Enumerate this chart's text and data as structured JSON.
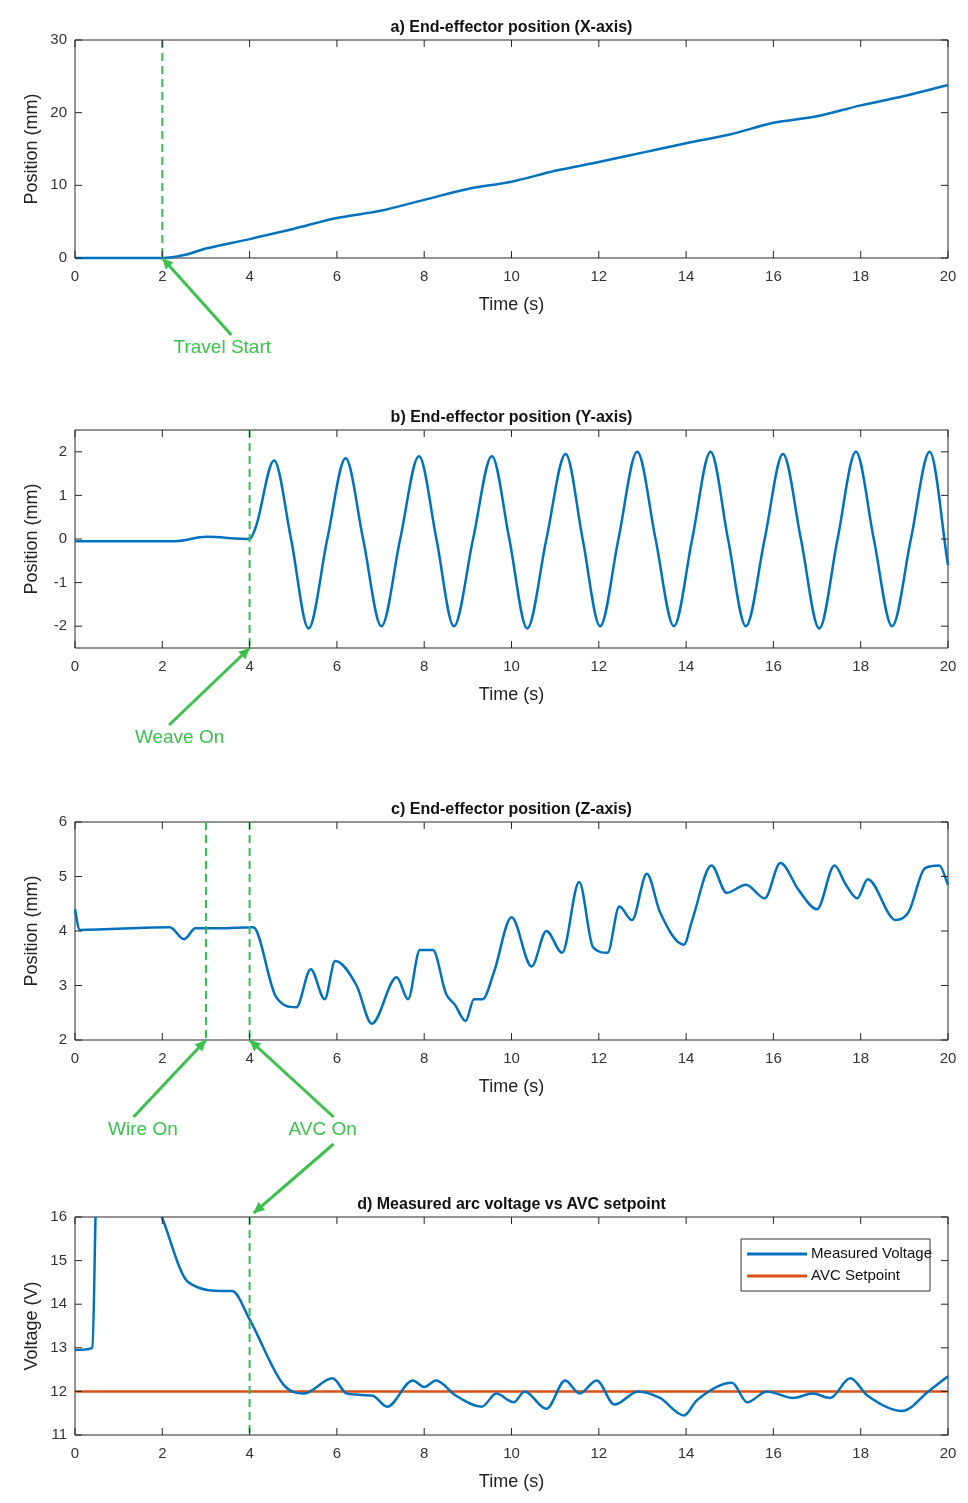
{
  "chart_data": [
    {
      "type": "line",
      "title": "a) End-effector position (X-axis)",
      "xlabel": "Time (s)",
      "ylabel": "Position (mm)",
      "xlim": [
        0,
        20
      ],
      "xticks": [
        0,
        2,
        4,
        6,
        8,
        10,
        12,
        14,
        16,
        18,
        20
      ],
      "ylim": [
        0,
        30
      ],
      "yticks": [
        0,
        10,
        20,
        30
      ],
      "grid": false,
      "legend": false,
      "series": [
        {
          "color": "#0072bd",
          "x": [
            0,
            1,
            2,
            2.5,
            3,
            4,
            5,
            6,
            7,
            8,
            9,
            10,
            11,
            12,
            13,
            14,
            15,
            16,
            17,
            18,
            19,
            20
          ],
          "values": [
            0,
            0,
            0,
            0.4,
            1.3,
            2.6,
            4,
            5.5,
            6.5,
            8,
            9.5,
            10.5,
            12,
            13.2,
            14.5,
            15.8,
            17,
            18.6,
            19.5,
            21,
            22.3,
            23.8
          ]
        }
      ],
      "ref_lines": [
        {
          "axis": "x",
          "value": 2,
          "color": "#33bb55",
          "line_style": "dashed"
        }
      ],
      "annotations": [
        {
          "text": "Travel Start",
          "x": 2,
          "y": 0
        }
      ]
    },
    {
      "type": "line",
      "title": "b) End-effector position (Y-axis)",
      "xlabel": "Time (s)",
      "ylabel": "Position (mm)",
      "xlim": [
        0,
        20
      ],
      "xticks": [
        0,
        2,
        4,
        6,
        8,
        10,
        12,
        14,
        16,
        18,
        20
      ],
      "ylim": [
        -2.5,
        2.5
      ],
      "yticks": [
        -2,
        -1,
        0,
        1,
        2
      ],
      "grid": false,
      "legend": false,
      "series": [
        {
          "color": "#0072bd",
          "x": [
            0,
            2.3,
            3,
            4,
            4.15,
            4.56,
            4.95,
            5.35,
            5.78,
            6.2,
            6.6,
            7.02,
            7.45,
            7.88,
            8.28,
            8.68,
            9.12,
            9.55,
            9.95,
            10.36,
            10.8,
            11.24,
            11.63,
            12.03,
            12.45,
            12.88,
            13.3,
            13.72,
            14.14,
            14.56,
            14.96,
            15.37,
            15.8,
            16.22,
            16.63,
            17.05,
            17.47,
            17.89,
            18.3,
            18.72,
            19.15,
            19.58,
            20
          ],
          "values": [
            -0.05,
            -0.05,
            0.05,
            0,
            0.3,
            1.8,
            0,
            -2.05,
            0,
            1.85,
            0,
            -2,
            0,
            1.9,
            0,
            -2,
            0,
            1.9,
            0,
            -2.05,
            0,
            1.95,
            0,
            -2,
            0,
            2,
            0,
            -2,
            0,
            2,
            0,
            -2,
            0,
            1.95,
            0,
            -2.05,
            0,
            2,
            0,
            -2,
            0,
            2,
            -0.6
          ]
        }
      ],
      "ref_lines": [
        {
          "axis": "x",
          "value": 4,
          "color": "#33bb55",
          "line_style": "dashed"
        }
      ],
      "annotations": [
        {
          "text": "Weave On",
          "x": 4,
          "y": -2.5
        }
      ]
    },
    {
      "type": "line",
      "title": "c) End-effector position (Z-axis)",
      "xlabel": "Time (s)",
      "ylabel": "Position (mm)",
      "xlim": [
        0,
        20
      ],
      "xticks": [
        0,
        2,
        4,
        6,
        8,
        10,
        12,
        14,
        16,
        18,
        20
      ],
      "ylim": [
        2,
        6
      ],
      "yticks": [
        2,
        3,
        4,
        5,
        6
      ],
      "grid": false,
      "legend": false,
      "series": [
        {
          "color": "#0072bd",
          "x": [
            0,
            0.1,
            2.17,
            2.5,
            2.76,
            3.3,
            4.08,
            4.6,
            5.07,
            5.4,
            5.72,
            5.96,
            6.45,
            6.8,
            7.37,
            7.63,
            7.9,
            8.2,
            8.5,
            8.7,
            8.95,
            9.14,
            9.34,
            9.6,
            10,
            10.46,
            10.8,
            11.16,
            11.55,
            11.87,
            12.2,
            12.47,
            12.76,
            13.1,
            13.4,
            13.95,
            14.14,
            14.58,
            14.93,
            15.37,
            15.8,
            16.16,
            16.58,
            17,
            17.4,
            17.66,
            17.92,
            18.16,
            18.8,
            19.1,
            19.47,
            19.8,
            20
          ],
          "values": [
            4.4,
            4.02,
            4.07,
            3.85,
            4.05,
            4.05,
            4.07,
            2.8,
            2.6,
            3.3,
            2.75,
            3.45,
            3,
            2.3,
            3.15,
            2.75,
            3.65,
            3.65,
            2.85,
            2.65,
            2.35,
            2.75,
            2.75,
            3.25,
            4.25,
            3.35,
            4,
            3.6,
            4.9,
            3.7,
            3.6,
            4.45,
            4.2,
            5.05,
            4.35,
            3.75,
            4.2,
            5.2,
            4.7,
            4.85,
            4.6,
            5.25,
            4.75,
            4.4,
            5.2,
            4.85,
            4.6,
            4.95,
            4.2,
            4.35,
            5.15,
            5.2,
            4.85
          ]
        }
      ],
      "ref_lines": [
        {
          "axis": "x",
          "value": 3,
          "color": "#33bb55",
          "line_style": "dashed"
        },
        {
          "axis": "x",
          "value": 4,
          "color": "#33bb55",
          "line_style": "dashed"
        }
      ],
      "annotations": [
        {
          "text": "Wire On",
          "x": 3,
          "y": 2
        },
        {
          "text": "AVC On",
          "x": 4,
          "y": 2
        }
      ]
    },
    {
      "type": "line",
      "title": "d) Measured arc voltage vs AVC setpoint",
      "xlabel": "Time (s)",
      "ylabel": "Voltage (V)",
      "xlim": [
        0,
        20
      ],
      "xticks": [
        0,
        2,
        4,
        6,
        8,
        10,
        12,
        14,
        16,
        18,
        20
      ],
      "ylim": [
        11,
        16
      ],
      "yticks": [
        11,
        12,
        13,
        14,
        15,
        16
      ],
      "grid": false,
      "legend": "top right",
      "series": [
        {
          "name": "Measured Voltage",
          "color": "#0072bd",
          "x": [
            0,
            0.4,
            0.47,
            1,
            1.99,
            2.6,
            3.46,
            3.6,
            4,
            4.78,
            5.24,
            5.9,
            6.23,
            6.82,
            7.15,
            7.74,
            8,
            8.27,
            8.73,
            9.32,
            9.65,
            10.05,
            10.3,
            10.8,
            11.23,
            11.56,
            11.95,
            12.36,
            12.9,
            13.4,
            13.95,
            14.25,
            15.05,
            15.4,
            15.85,
            16.45,
            16.9,
            17.3,
            17.76,
            18.16,
            18.95,
            19.55,
            20
          ],
          "values": [
            12.95,
            13,
            16,
            null,
            16,
            14.5,
            14.3,
            14.3,
            13.65,
            12.15,
            11.95,
            12.3,
            11.95,
            11.9,
            11.65,
            12.25,
            12.1,
            12.25,
            11.9,
            11.65,
            11.95,
            11.75,
            12,
            11.6,
            12.25,
            11.95,
            12.25,
            11.7,
            12,
            11.85,
            11.45,
            11.8,
            12.2,
            11.75,
            12,
            11.85,
            11.95,
            11.85,
            12.3,
            11.9,
            11.55,
            12,
            12.35
          ]
        },
        {
          "name": "AVC Setpoint",
          "color": "#d95319",
          "x": [
            0,
            20
          ],
          "values": [
            12,
            12
          ]
        }
      ],
      "ref_lines": [
        {
          "axis": "x",
          "value": 4,
          "color": "#33bb55",
          "line_style": "dashed"
        }
      ]
    }
  ]
}
